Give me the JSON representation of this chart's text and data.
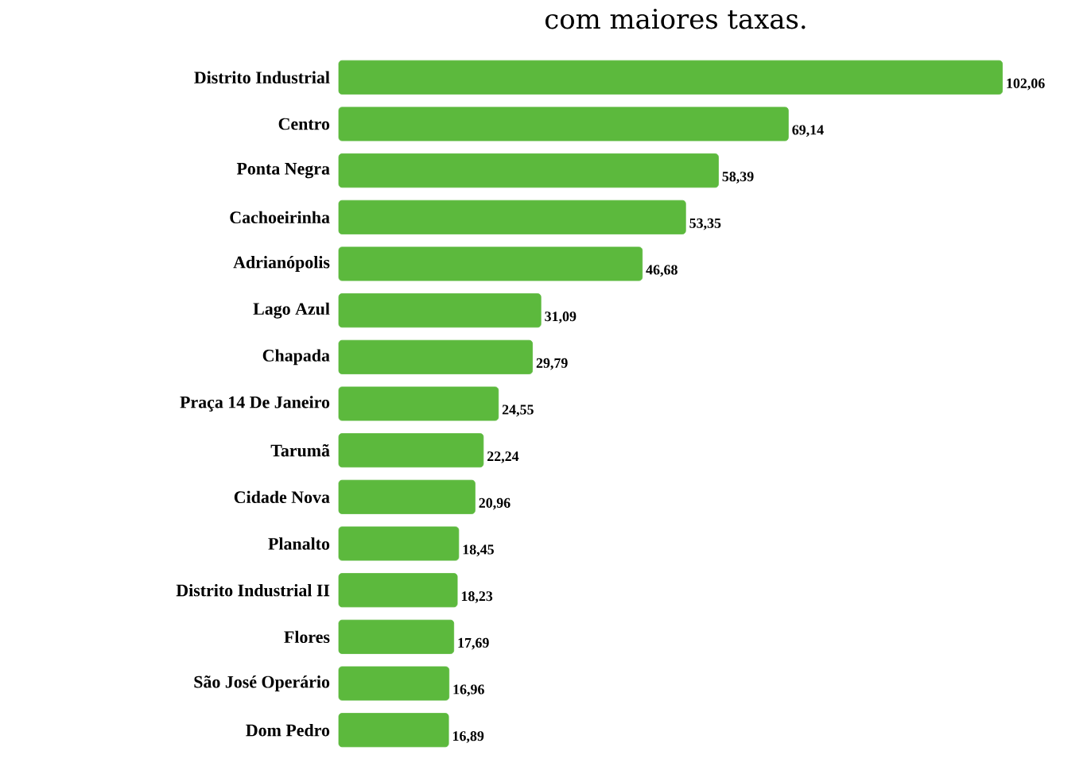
{
  "chart_data": {
    "type": "bar",
    "orientation": "horizontal",
    "title": "com maiores taxas.",
    "categories": [
      "Distrito Industrial",
      "Centro",
      "Ponta Negra",
      "Cachoeirinha",
      "Adrianópolis",
      "Lago Azul",
      "Chapada",
      "Praça 14 De Janeiro",
      "Tarumã",
      "Cidade Nova",
      "Planalto",
      "Distrito Industrial II",
      "Flores",
      "São José Operário",
      "Dom Pedro"
    ],
    "values": [
      102.06,
      69.14,
      58.39,
      53.35,
      46.68,
      31.09,
      29.79,
      24.55,
      22.24,
      20.96,
      18.45,
      18.23,
      17.69,
      16.96,
      16.89
    ],
    "value_labels": [
      "102,06",
      "69,14",
      "58,39",
      "53,35",
      "46,68",
      "31,09",
      "29,79",
      "24,55",
      "22,24",
      "20,96",
      "18,45",
      "18,23",
      "17,69",
      "16,96",
      "16,89"
    ],
    "color": "#5cb93d",
    "grid": false
  }
}
